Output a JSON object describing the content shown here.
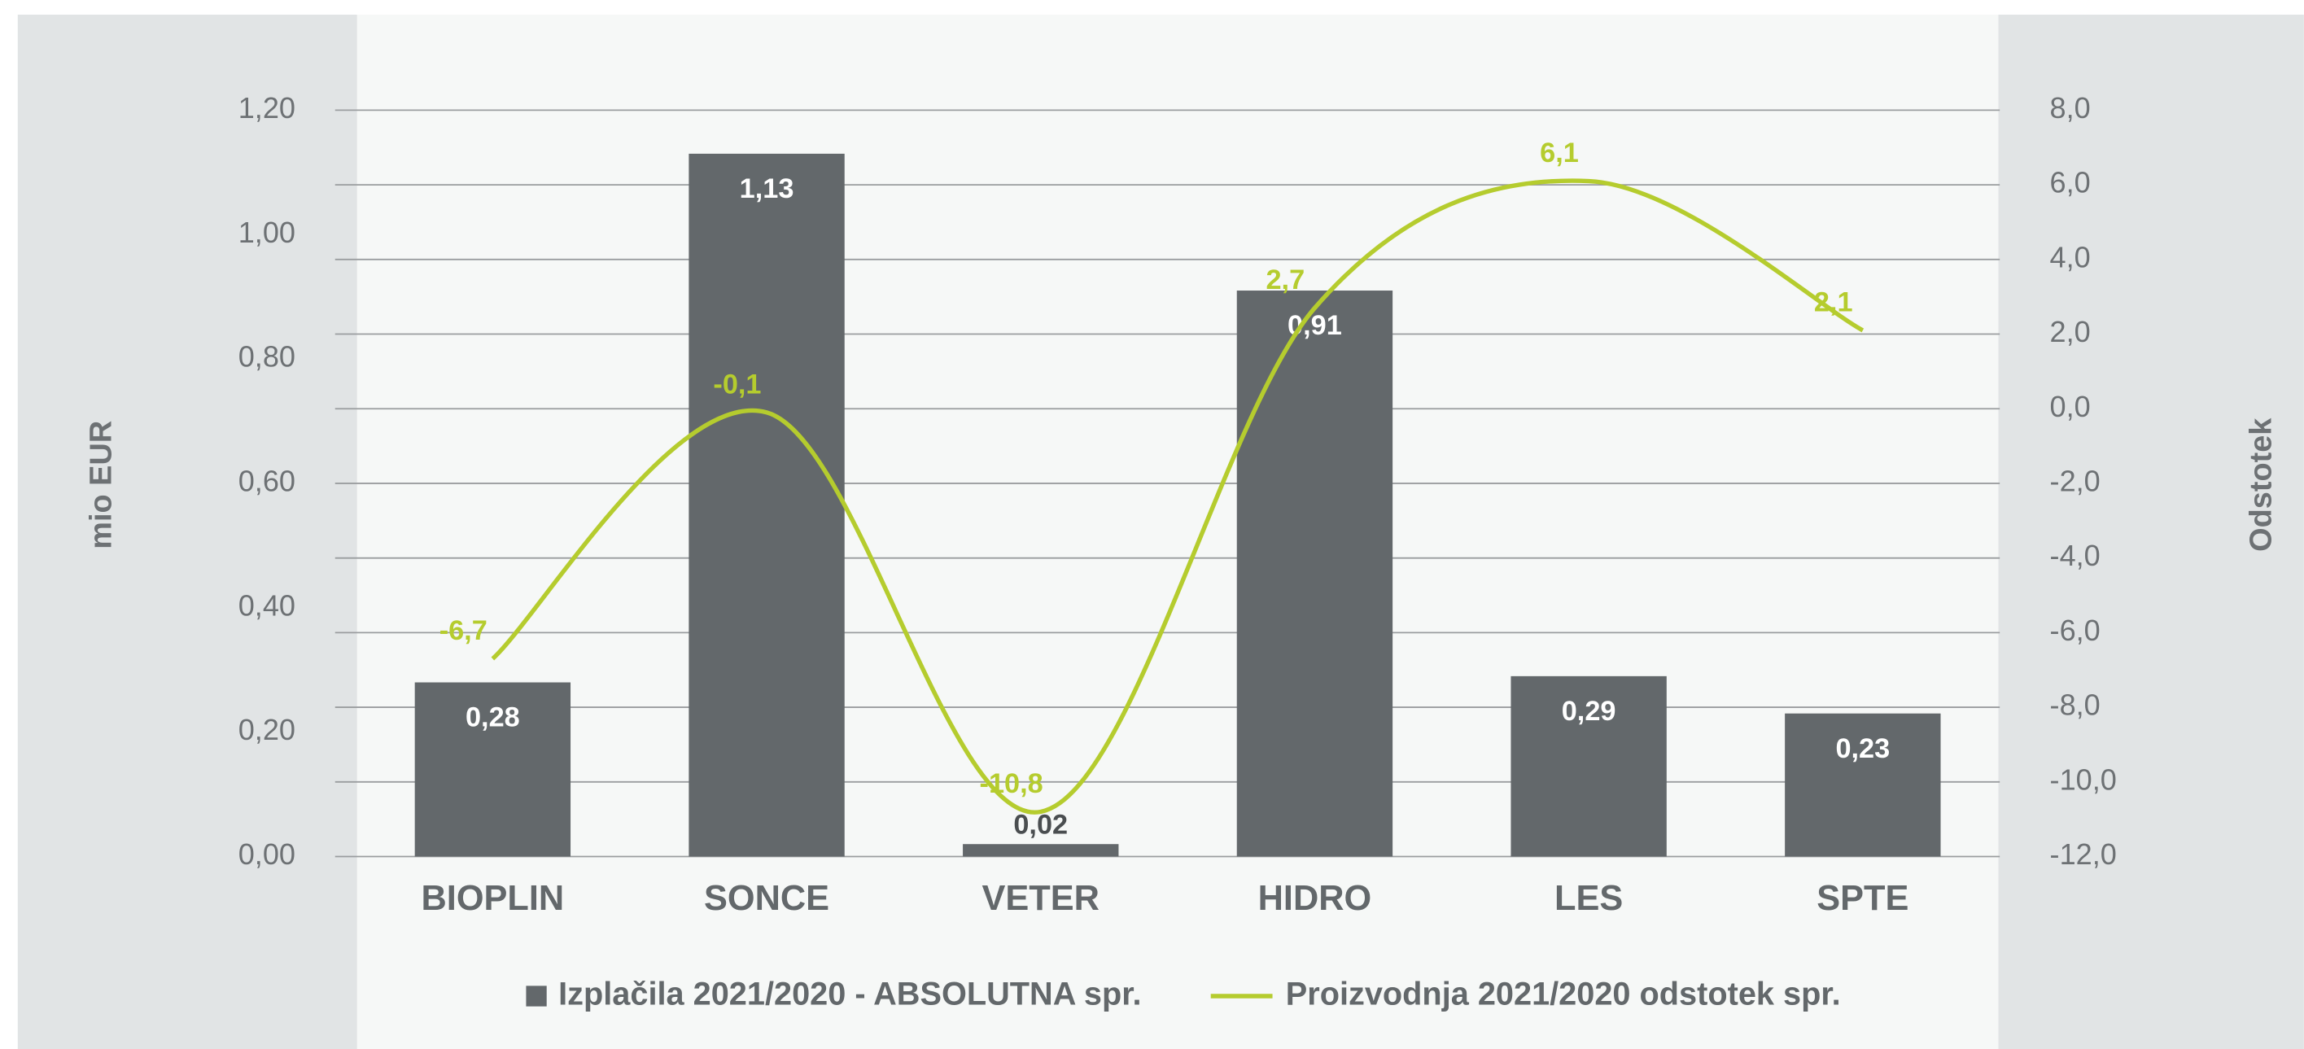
{
  "chart_data": {
    "type": "bar",
    "categories": [
      "BIOPLIN",
      "SONCE",
      "VETER",
      "HIDRO",
      "LES",
      "SPTE"
    ],
    "ylabel": "mio EUR",
    "y2label": "Odstotek",
    "ylim": [
      0,
      1.2
    ],
    "yticks": [
      {
        "value": 0,
        "label": "0,00"
      },
      {
        "value": 0.2,
        "label": "0,20"
      },
      {
        "value": 0.4,
        "label": "0,40"
      },
      {
        "value": 0.6,
        "label": "0,60"
      },
      {
        "value": 0.8,
        "label": "0,80"
      },
      {
        "value": 1.0,
        "label": "1,00"
      },
      {
        "value": 1.2,
        "label": "1,20"
      }
    ],
    "y2lim": [
      -12,
      8
    ],
    "y2ticks": [
      {
        "value": -12,
        "label": "-12,0"
      },
      {
        "value": -10,
        "label": "-10,0"
      },
      {
        "value": -8,
        "label": "-8,0"
      },
      {
        "value": -6,
        "label": "-6,0"
      },
      {
        "value": -4,
        "label": "-4,0"
      },
      {
        "value": -2,
        "label": "-2,0"
      },
      {
        "value": 0,
        "label": "0,0"
      },
      {
        "value": 2,
        "label": "2,0"
      },
      {
        "value": 4,
        "label": "4,0"
      },
      {
        "value": 6,
        "label": "6,0"
      },
      {
        "value": 8,
        "label": "8,0"
      }
    ],
    "grid": true,
    "series": [
      {
        "name": "Izplačila 2021/2020 - ABSOLUTNA spr.",
        "type": "bar",
        "color": "#63686b",
        "values": [
          0.28,
          1.13,
          0.02,
          0.91,
          0.29,
          0.23
        ],
        "value_labels": [
          "0,28",
          "1,13",
          "0,02",
          "0,91",
          "0,29",
          "0,23"
        ]
      },
      {
        "name": "Proizvodnja 2021/2020 odstotek spr.",
        "type": "line",
        "axis": "y2",
        "color": "#b5cc2e",
        "values": [
          -6.7,
          -0.1,
          -10.8,
          2.7,
          6.1,
          2.1
        ],
        "value_labels": [
          "-6,7",
          "-0,1",
          "-10,8",
          "2,7",
          "6,1",
          "2,1"
        ]
      }
    ]
  }
}
